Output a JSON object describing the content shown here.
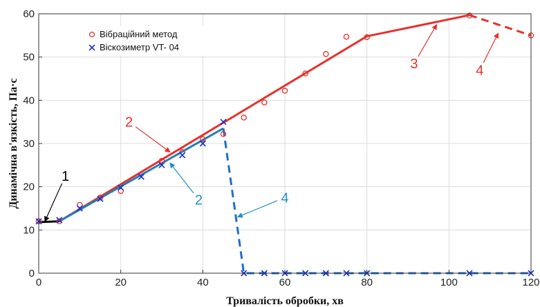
{
  "chart_data": {
    "type": "line",
    "xlabel": "Тривалість обробки, хв",
    "ylabel": "Динамічна в'язкість, Па·с",
    "xlim": [
      0,
      120
    ],
    "ylim": [
      0,
      60
    ],
    "xticks": [
      0,
      20,
      40,
      60,
      80,
      100,
      120
    ],
    "yticks": [
      0,
      10,
      20,
      30,
      40,
      50,
      60
    ],
    "grid": true,
    "legend_position": "top-left",
    "legend": [
      {
        "label": "Вібраційний метод",
        "marker": "circle",
        "color": "#e8302a"
      },
      {
        "label": "Віскозиметр VT- 04",
        "marker": "x",
        "color": "#2233cc"
      }
    ],
    "series": [
      {
        "name": "Вібраційний метод",
        "kind": "scatter",
        "marker": "circle",
        "color": "#e8302a",
        "x": [
          0,
          5,
          10,
          15,
          20,
          30,
          35,
          40,
          45,
          50,
          55,
          60,
          65,
          70,
          75,
          80,
          105,
          120
        ],
        "y": [
          12,
          12,
          15.8,
          17.5,
          19,
          26,
          28,
          31,
          32.2,
          36,
          39.5,
          42.2,
          46.2,
          50.7,
          54.7,
          54.6,
          59.6,
          55
        ]
      },
      {
        "name": "Віскозиметр VT- 04",
        "kind": "scatter",
        "marker": "x",
        "color": "#2233cc",
        "x": [
          0,
          5,
          10,
          15,
          20,
          25,
          30,
          35,
          40,
          45,
          50,
          55,
          60,
          65,
          70,
          75,
          80,
          105,
          120
        ],
        "y": [
          12,
          12.3,
          15,
          17.2,
          19.8,
          22.3,
          25,
          27.3,
          30,
          35,
          0,
          0,
          0,
          0,
          0,
          0,
          0,
          0,
          0
        ]
      },
      {
        "kind": "line",
        "style": "solid",
        "color": "#000000",
        "x": [
          0,
          5
        ],
        "y": [
          11.8,
          12
        ]
      },
      {
        "kind": "line",
        "style": "solid",
        "color": "#e8302a",
        "x": [
          5,
          80,
          105
        ],
        "y": [
          12,
          54.8,
          59.7
        ]
      },
      {
        "kind": "line",
        "style": "dashed",
        "color": "#e8302a",
        "x": [
          105,
          120
        ],
        "y": [
          59.7,
          55
        ]
      },
      {
        "kind": "line",
        "style": "solid",
        "color": "#1f7fb8",
        "x": [
          5,
          45
        ],
        "y": [
          12,
          33.5
        ]
      },
      {
        "kind": "line",
        "style": "dashed",
        "color": "#1f6fc0",
        "x": [
          45,
          50,
          120
        ],
        "y": [
          33.5,
          0,
          0
        ]
      }
    ],
    "annotations": [
      {
        "text": "1",
        "color": "#000000",
        "label_at": [
          6.5,
          22.5
        ],
        "arrow_to": [
          1.5,
          12
        ]
      },
      {
        "text": "2",
        "color": "#e8302a",
        "label_at": [
          22,
          35
        ],
        "arrow_to": [
          32,
          28
        ]
      },
      {
        "text": "2",
        "color": "#1f8fc8",
        "label_at": [
          39,
          17
        ],
        "arrow_to": [
          32,
          25.5
        ]
      },
      {
        "text": "3",
        "color": "#e8302a",
        "label_at": [
          91.5,
          48.5
        ],
        "arrow_to": [
          97,
          57.5
        ]
      },
      {
        "text": "4",
        "color": "#1f8fc8",
        "label_at": [
          60,
          17.5
        ],
        "arrow_to": [
          48.5,
          13
        ]
      },
      {
        "text": "4",
        "color": "#e8302a",
        "label_at": [
          107.5,
          47
        ],
        "arrow_to": [
          112,
          55.5
        ]
      }
    ]
  }
}
